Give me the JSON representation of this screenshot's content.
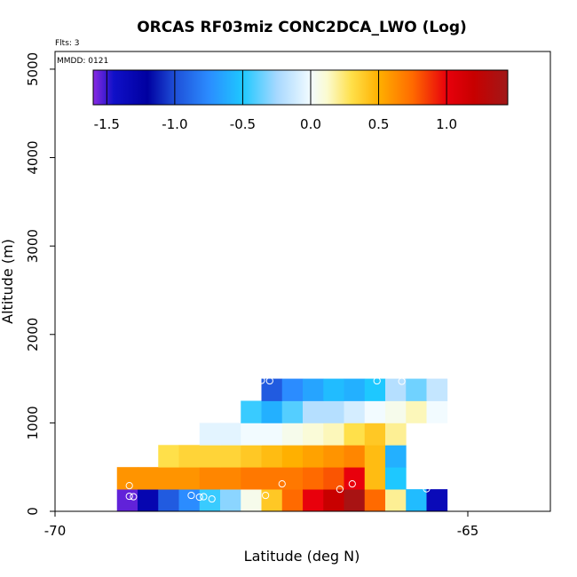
{
  "chart_data": {
    "type": "heatmap",
    "title": "ORCAS RF03miz CONC2DCA_LWO (Log)",
    "annotations": {
      "flights": "Flts: 3",
      "mmdd": "MMDD: 0121"
    },
    "xlabel": "Latitude (deg N)",
    "ylabel": "Altitude (m)",
    "xlim": [
      -70,
      -64
    ],
    "ylim": [
      0,
      5200
    ],
    "xticks": [
      {
        "value": -70,
        "label": "-70"
      },
      {
        "value": -65,
        "label": "-65"
      }
    ],
    "yticks": [
      {
        "value": 0,
        "label": "0"
      },
      {
        "value": 1000,
        "label": "1000"
      },
      {
        "value": 2000,
        "label": "2000"
      },
      {
        "value": 3000,
        "label": "3000"
      },
      {
        "value": 4000,
        "label": "4000"
      },
      {
        "value": 5000,
        "label": "5000"
      }
    ],
    "colorbar": {
      "range": [
        -1.6,
        1.45
      ],
      "ticks": [
        {
          "value": -1.5,
          "label": "-1.5"
        },
        {
          "value": -1.0,
          "label": "-1.0"
        },
        {
          "value": -0.5,
          "label": "-0.5"
        },
        {
          "value": 0.0,
          "label": "0.0"
        },
        {
          "value": 0.5,
          "label": "0.5"
        },
        {
          "value": 1.0,
          "label": "1.0"
        }
      ],
      "stops": [
        {
          "v": -1.6,
          "c": "#8a2be2"
        },
        {
          "v": -1.45,
          "c": "#1010c8"
        },
        {
          "v": -1.2,
          "c": "#0000a0"
        },
        {
          "v": -1.0,
          "c": "#1e4fd8"
        },
        {
          "v": -0.75,
          "c": "#2b8cff"
        },
        {
          "v": -0.5,
          "c": "#1ec8ff"
        },
        {
          "v": -0.25,
          "c": "#a6d8ff"
        },
        {
          "v": 0.0,
          "c": "#f2fbff"
        },
        {
          "v": 0.12,
          "c": "#fbfbd0"
        },
        {
          "v": 0.3,
          "c": "#ffe04a"
        },
        {
          "v": 0.5,
          "c": "#ffb000"
        },
        {
          "v": 0.75,
          "c": "#ff6a00"
        },
        {
          "v": 1.0,
          "c": "#e8000c"
        },
        {
          "v": 1.2,
          "c": "#c80000"
        },
        {
          "v": 1.45,
          "c": "#a01818"
        }
      ]
    },
    "cell_width_deg": 0.25,
    "cell_height_m": 250,
    "rows": [
      {
        "alt": 125,
        "x_start": -69.25,
        "values": [
          -1.55,
          -1.3,
          -0.95,
          -0.75,
          -0.45,
          -0.3,
          0.05,
          0.4,
          0.75,
          1.0,
          1.2,
          1.4,
          0.75,
          0.2,
          -0.55,
          -1.35
        ]
      },
      {
        "alt": 375,
        "x_start": -69.25,
        "values": [
          0.6,
          0.6,
          0.6,
          0.6,
          0.65,
          0.65,
          0.7,
          0.7,
          0.7,
          0.75,
          0.8,
          1.0,
          0.45,
          -0.5
        ]
      },
      {
        "alt": 625,
        "x_start": -68.75,
        "values": [
          0.3,
          0.35,
          0.35,
          0.35,
          0.4,
          0.45,
          0.5,
          0.55,
          0.6,
          0.65,
          0.45,
          -0.6
        ]
      },
      {
        "alt": 875,
        "x_start": -68.25,
        "values": [
          -0.05,
          -0.05,
          0.0,
          0.0,
          0.05,
          0.1,
          0.15,
          0.3,
          0.4,
          0.2
        ]
      },
      {
        "alt": 1125,
        "x_start": -67.75,
        "values": [
          -0.45,
          -0.6,
          -0.4,
          -0.2,
          -0.2,
          -0.1,
          0.0,
          0.05,
          0.15,
          0.0
        ]
      },
      {
        "alt": 1375,
        "x_start": -67.5,
        "values": [
          -0.95,
          -0.75,
          -0.65,
          -0.55,
          -0.6,
          -0.5,
          -0.2,
          -0.35,
          -0.15
        ]
      }
    ],
    "sample_points": [
      {
        "lat": -69.1,
        "alt": 170
      },
      {
        "lat": -69.05,
        "alt": 165
      },
      {
        "lat": -69.1,
        "alt": 290
      },
      {
        "lat": -68.35,
        "alt": 180
      },
      {
        "lat": -68.25,
        "alt": 160
      },
      {
        "lat": -68.2,
        "alt": 165
      },
      {
        "lat": -68.1,
        "alt": 140
      },
      {
        "lat": -67.45,
        "alt": 180
      },
      {
        "lat": -67.25,
        "alt": 310
      },
      {
        "lat": -66.55,
        "alt": 250
      },
      {
        "lat": -66.4,
        "alt": 310
      },
      {
        "lat": -65.5,
        "alt": 255
      },
      {
        "lat": -66.1,
        "alt": 1475
      },
      {
        "lat": -65.8,
        "alt": 1470
      },
      {
        "lat": -67.4,
        "alt": 1475
      },
      {
        "lat": -67.5,
        "alt": 1480
      }
    ]
  }
}
